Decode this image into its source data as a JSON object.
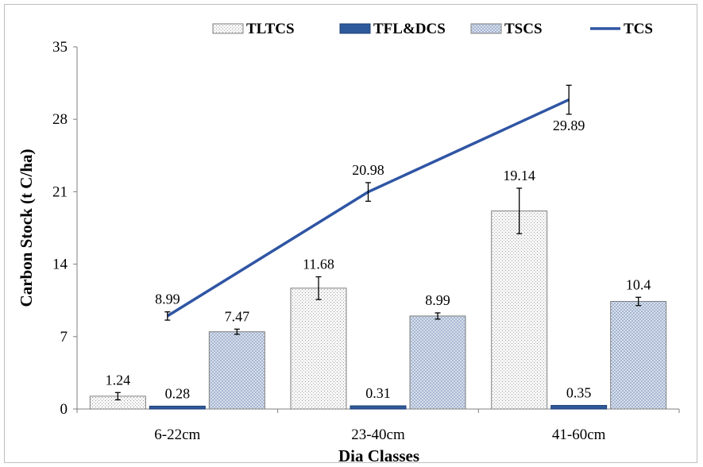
{
  "chart_data": {
    "type": "bar",
    "title": "",
    "xlabel": "Dia Classes",
    "ylabel": "Carbon Stock (t C/ha)",
    "ylim": [
      0,
      35
    ],
    "yticks": [
      "0",
      "7",
      "14",
      "21",
      "28",
      "35"
    ],
    "categories": [
      "6-22cm",
      "23-40cm",
      "41-60cm"
    ],
    "grid": false,
    "legend_position": "top",
    "series": [
      {
        "name": "TLTCS",
        "kind": "bar",
        "values": [
          1.24,
          11.68,
          19.14
        ],
        "labels": [
          "1.24",
          "11.68",
          "19.14"
        ],
        "errors": [
          0.35,
          1.1,
          2.2
        ],
        "color": "#f4f4f4",
        "pattern": "fine-dots"
      },
      {
        "name": "TFL&DCS",
        "kind": "bar",
        "values": [
          0.28,
          0.31,
          0.35
        ],
        "labels": [
          "0.28",
          "0.31",
          "0.35"
        ],
        "errors": [
          0,
          0,
          0
        ],
        "color": "#2e5a9b",
        "pattern": "solid"
      },
      {
        "name": "TSCS",
        "kind": "bar",
        "values": [
          7.47,
          8.99,
          10.4
        ],
        "labels": [
          "7.47",
          "8.99",
          "10.4"
        ],
        "errors": [
          0.25,
          0.3,
          0.4
        ],
        "color": "#dfe6f2",
        "pattern": "crosshatch"
      },
      {
        "name": "TCS",
        "kind": "line",
        "values": [
          8.99,
          20.98,
          29.89
        ],
        "labels": [
          "8.99",
          "20.98",
          "29.89"
        ],
        "errors": [
          0.4,
          0.9,
          1.4
        ],
        "color": "#2f55a4"
      }
    ]
  }
}
